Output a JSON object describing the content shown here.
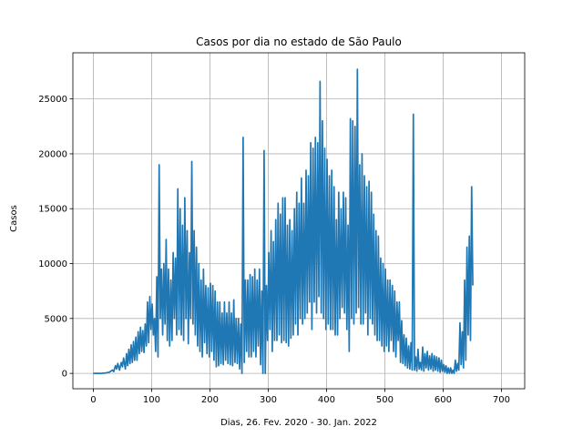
{
  "chart_data": {
    "type": "line",
    "title": "Casos por dia no estado de São Paulo",
    "xlabel": "Dias, 26. Fev. 2020 - 30. Jan. 2022",
    "ylabel": "Casos",
    "xlim": [
      -35,
      740
    ],
    "ylim": [
      -1400,
      29200
    ],
    "xticks": [
      0,
      100,
      200,
      300,
      400,
      500,
      600,
      700
    ],
    "yticks": [
      0,
      5000,
      10000,
      15000,
      20000,
      25000
    ],
    "grid": true,
    "series": [
      {
        "color": "#1f77b4",
        "points": [
          [
            0,
            0
          ],
          [
            5,
            0
          ],
          [
            10,
            0
          ],
          [
            15,
            10
          ],
          [
            20,
            30
          ],
          [
            25,
            80
          ],
          [
            28,
            120
          ],
          [
            30,
            200
          ],
          [
            33,
            300
          ],
          [
            35,
            150
          ],
          [
            38,
            700
          ],
          [
            40,
            400
          ],
          [
            42,
            900
          ],
          [
            45,
            300
          ],
          [
            48,
            1000
          ],
          [
            50,
            600
          ],
          [
            52,
            1400
          ],
          [
            55,
            400
          ],
          [
            57,
            1800
          ],
          [
            59,
            700
          ],
          [
            61,
            2200
          ],
          [
            63,
            900
          ],
          [
            65,
            2600
          ],
          [
            67,
            1000
          ],
          [
            69,
            2900
          ],
          [
            71,
            1200
          ],
          [
            73,
            3300
          ],
          [
            75,
            1200
          ],
          [
            77,
            3800
          ],
          [
            79,
            1800
          ],
          [
            81,
            4200
          ],
          [
            83,
            2000
          ],
          [
            85,
            3900
          ],
          [
            87,
            1900
          ],
          [
            89,
            4500
          ],
          [
            91,
            2500
          ],
          [
            93,
            6500
          ],
          [
            95,
            2800
          ],
          [
            97,
            7000
          ],
          [
            99,
            4000
          ],
          [
            101,
            6300
          ],
          [
            103,
            3500
          ],
          [
            105,
            5000
          ],
          [
            107,
            2000
          ],
          [
            109,
            8800
          ],
          [
            111,
            1500
          ],
          [
            113,
            19000
          ],
          [
            115,
            5000
          ],
          [
            117,
            9500
          ],
          [
            119,
            3500
          ],
          [
            121,
            10000
          ],
          [
            123,
            4500
          ],
          [
            125,
            12200
          ],
          [
            127,
            3000
          ],
          [
            129,
            9500
          ],
          [
            131,
            2500
          ],
          [
            133,
            8500
          ],
          [
            135,
            3000
          ],
          [
            137,
            11000
          ],
          [
            139,
            5000
          ],
          [
            141,
            10500
          ],
          [
            143,
            3500
          ],
          [
            145,
            16800
          ],
          [
            147,
            4000
          ],
          [
            149,
            15000
          ],
          [
            151,
            3500
          ],
          [
            153,
            13500
          ],
          [
            155,
            3000
          ],
          [
            157,
            16000
          ],
          [
            159,
            5000
          ],
          [
            161,
            13000
          ],
          [
            163,
            2700
          ],
          [
            165,
            11000
          ],
          [
            167,
            5000
          ],
          [
            169,
            19300
          ],
          [
            171,
            4500
          ],
          [
            173,
            13000
          ],
          [
            175,
            3500
          ],
          [
            177,
            11500
          ],
          [
            179,
            2500
          ],
          [
            181,
            10000
          ],
          [
            183,
            2000
          ],
          [
            185,
            8500
          ],
          [
            187,
            1500
          ],
          [
            189,
            9500
          ],
          [
            191,
            2800
          ],
          [
            193,
            8000
          ],
          [
            195,
            1800
          ],
          [
            197,
            7800
          ],
          [
            199,
            1500
          ],
          [
            201,
            8200
          ],
          [
            203,
            2000
          ],
          [
            205,
            8000
          ],
          [
            207,
            1200
          ],
          [
            209,
            7500
          ],
          [
            211,
            600
          ],
          [
            213,
            6500
          ],
          [
            215,
            700
          ],
          [
            217,
            6500
          ],
          [
            219,
            900
          ],
          [
            221,
            5500
          ],
          [
            223,
            800
          ],
          [
            225,
            6500
          ],
          [
            227,
            1200
          ],
          [
            229,
            5500
          ],
          [
            231,
            900
          ],
          [
            233,
            6500
          ],
          [
            235,
            800
          ],
          [
            237,
            5500
          ],
          [
            239,
            700
          ],
          [
            241,
            6700
          ],
          [
            243,
            1000
          ],
          [
            245,
            5000
          ],
          [
            247,
            900
          ],
          [
            249,
            5000
          ],
          [
            251,
            400
          ],
          [
            253,
            4500
          ],
          [
            255,
            0
          ],
          [
            257,
            21500
          ],
          [
            259,
            1000
          ],
          [
            261,
            8500
          ],
          [
            263,
            2000
          ],
          [
            265,
            8500
          ],
          [
            267,
            1500
          ],
          [
            269,
            9000
          ],
          [
            271,
            1500
          ],
          [
            273,
            8800
          ],
          [
            275,
            2000
          ],
          [
            277,
            9500
          ],
          [
            279,
            1500
          ],
          [
            281,
            8500
          ],
          [
            283,
            2500
          ],
          [
            285,
            9500
          ],
          [
            287,
            800
          ],
          [
            289,
            7500
          ],
          [
            291,
            0
          ],
          [
            293,
            20300
          ],
          [
            295,
            0
          ],
          [
            297,
            8000
          ],
          [
            299,
            3000
          ],
          [
            301,
            11000
          ],
          [
            303,
            4000
          ],
          [
            305,
            13000
          ],
          [
            307,
            2000
          ],
          [
            309,
            12000
          ],
          [
            311,
            3000
          ],
          [
            313,
            14000
          ],
          [
            315,
            3000
          ],
          [
            317,
            15500
          ],
          [
            319,
            3500
          ],
          [
            321,
            14500
          ],
          [
            323,
            2800
          ],
          [
            325,
            16000
          ],
          [
            327,
            3000
          ],
          [
            329,
            16000
          ],
          [
            331,
            2800
          ],
          [
            333,
            13500
          ],
          [
            335,
            2500
          ],
          [
            337,
            14000
          ],
          [
            339,
            3200
          ],
          [
            341,
            13000
          ],
          [
            343,
            3500
          ],
          [
            345,
            15000
          ],
          [
            347,
            4500
          ],
          [
            349,
            16500
          ],
          [
            351,
            3500
          ],
          [
            353,
            15500
          ],
          [
            355,
            5000
          ],
          [
            357,
            17800
          ],
          [
            359,
            4500
          ],
          [
            361,
            15500
          ],
          [
            363,
            5000
          ],
          [
            365,
            18500
          ],
          [
            367,
            5500
          ],
          [
            369,
            18000
          ],
          [
            371,
            6500
          ],
          [
            373,
            21000
          ],
          [
            375,
            4000
          ],
          [
            377,
            20500
          ],
          [
            379,
            6500
          ],
          [
            381,
            21500
          ],
          [
            383,
            5500
          ],
          [
            385,
            21000
          ],
          [
            387,
            7000
          ],
          [
            389,
            26600
          ],
          [
            391,
            5500
          ],
          [
            393,
            23000
          ],
          [
            395,
            5000
          ],
          [
            397,
            20500
          ],
          [
            399,
            4000
          ],
          [
            401,
            19500
          ],
          [
            403,
            4500
          ],
          [
            405,
            18000
          ],
          [
            407,
            4000
          ],
          [
            409,
            18500
          ],
          [
            411,
            4000
          ],
          [
            413,
            17000
          ],
          [
            415,
            3500
          ],
          [
            417,
            14000
          ],
          [
            419,
            3500
          ],
          [
            421,
            16500
          ],
          [
            423,
            5000
          ],
          [
            425,
            15000
          ],
          [
            427,
            6000
          ],
          [
            429,
            16500
          ],
          [
            431,
            5500
          ],
          [
            433,
            16000
          ],
          [
            435,
            4000
          ],
          [
            437,
            13500
          ],
          [
            439,
            2000
          ],
          [
            441,
            23200
          ],
          [
            443,
            5000
          ],
          [
            445,
            23000
          ],
          [
            447,
            4500
          ],
          [
            449,
            22500
          ],
          [
            451,
            5500
          ],
          [
            453,
            27700
          ],
          [
            455,
            6000
          ],
          [
            457,
            19000
          ],
          [
            459,
            4500
          ],
          [
            461,
            20000
          ],
          [
            463,
            4500
          ],
          [
            465,
            18000
          ],
          [
            467,
            5500
          ],
          [
            469,
            17000
          ],
          [
            471,
            3500
          ],
          [
            473,
            17500
          ],
          [
            475,
            5000
          ],
          [
            477,
            16500
          ],
          [
            479,
            4500
          ],
          [
            481,
            14500
          ],
          [
            483,
            3500
          ],
          [
            485,
            13000
          ],
          [
            487,
            3000
          ],
          [
            489,
            12500
          ],
          [
            491,
            3000
          ],
          [
            493,
            10500
          ],
          [
            495,
            2500
          ],
          [
            497,
            10000
          ],
          [
            499,
            2000
          ],
          [
            501,
            9500
          ],
          [
            503,
            2500
          ],
          [
            505,
            8500
          ],
          [
            507,
            2000
          ],
          [
            509,
            8500
          ],
          [
            511,
            3000
          ],
          [
            513,
            8000
          ],
          [
            515,
            2000
          ],
          [
            517,
            7500
          ],
          [
            519,
            1500
          ],
          [
            521,
            6500
          ],
          [
            523,
            3000
          ],
          [
            525,
            6500
          ],
          [
            527,
            1000
          ],
          [
            529,
            4800
          ],
          [
            531,
            900
          ],
          [
            533,
            3500
          ],
          [
            535,
            700
          ],
          [
            537,
            3200
          ],
          [
            539,
            500
          ],
          [
            541,
            2500
          ],
          [
            543,
            400
          ],
          [
            545,
            2800
          ],
          [
            547,
            300
          ],
          [
            549,
            23600
          ],
          [
            551,
            300
          ],
          [
            553,
            1500
          ],
          [
            555,
            200
          ],
          [
            557,
            2200
          ],
          [
            559,
            400
          ],
          [
            561,
            1000
          ],
          [
            563,
            300
          ],
          [
            565,
            2400
          ],
          [
            567,
            200
          ],
          [
            569,
            1800
          ],
          [
            571,
            500
          ],
          [
            573,
            2000
          ],
          [
            575,
            300
          ],
          [
            577,
            1600
          ],
          [
            579,
            400
          ],
          [
            581,
            1800
          ],
          [
            583,
            200
          ],
          [
            585,
            1600
          ],
          [
            587,
            300
          ],
          [
            589,
            1500
          ],
          [
            591,
            200
          ],
          [
            593,
            1400
          ],
          [
            595,
            100
          ],
          [
            597,
            1200
          ],
          [
            599,
            200
          ],
          [
            601,
            800
          ],
          [
            603,
            100
          ],
          [
            605,
            700
          ],
          [
            607,
            0
          ],
          [
            609,
            500
          ],
          [
            611,
            0
          ],
          [
            613,
            500
          ],
          [
            615,
            0
          ],
          [
            617,
            300
          ],
          [
            619,
            0
          ],
          [
            621,
            1200
          ],
          [
            623,
            200
          ],
          [
            625,
            900
          ],
          [
            627,
            300
          ],
          [
            629,
            4600
          ],
          [
            631,
            800
          ],
          [
            633,
            3800
          ],
          [
            635,
            500
          ],
          [
            637,
            8500
          ],
          [
            639,
            1200
          ],
          [
            641,
            11500
          ],
          [
            643,
            3500
          ],
          [
            645,
            12500
          ],
          [
            647,
            3000
          ],
          [
            649,
            17000
          ],
          [
            651,
            8000
          ]
        ]
      }
    ]
  }
}
